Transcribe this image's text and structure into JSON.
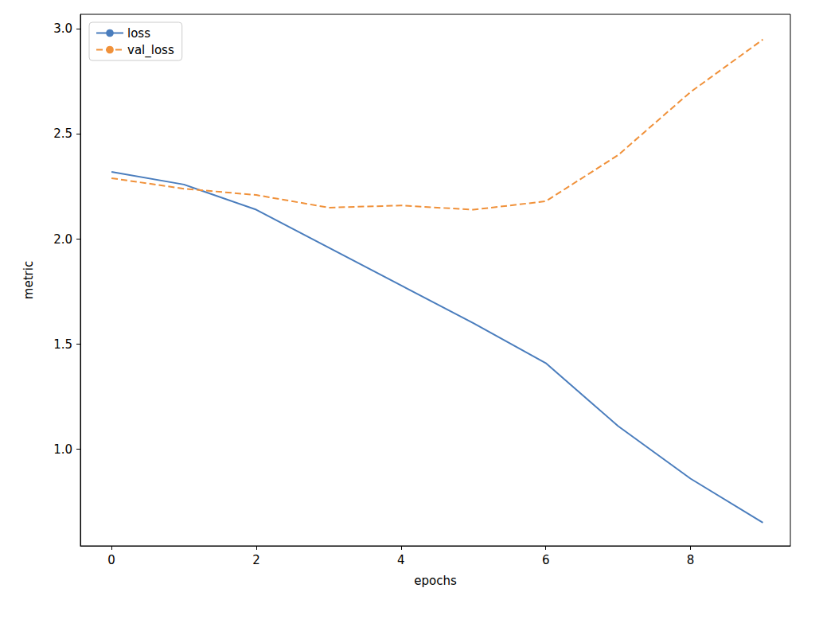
{
  "chart_data": {
    "type": "line",
    "x_label": "epochs",
    "y_label": "metric",
    "x": [
      0,
      1,
      2,
      3,
      4,
      5,
      6,
      7,
      8,
      9
    ],
    "series": [
      {
        "name": "loss",
        "color": "#4a7dbd",
        "line_style": "solid",
        "values": [
          2.32,
          2.26,
          2.14,
          1.96,
          1.78,
          1.6,
          1.41,
          1.11,
          0.86,
          0.65
        ]
      },
      {
        "name": "val_loss",
        "color": "#f0913a",
        "line_style": "dashed",
        "values": [
          2.29,
          2.24,
          2.21,
          2.15,
          2.16,
          2.14,
          2.18,
          2.4,
          2.7,
          2.95
        ]
      }
    ],
    "xlim": [
      -0.43,
      9.38
    ],
    "xticks": [
      0,
      2,
      4,
      6,
      8
    ],
    "ylim": [
      0.54,
      3.07
    ],
    "yticks": [
      {
        "value": 1.0,
        "label": "1.0"
      },
      {
        "value": 1.5,
        "label": "1.5"
      },
      {
        "value": 2.0,
        "label": "2.0"
      },
      {
        "value": 2.5,
        "label": "2.5"
      },
      {
        "value": 3.0,
        "label": "3.0"
      }
    ],
    "grid": false,
    "legend": "upper left",
    "marker": "none"
  }
}
